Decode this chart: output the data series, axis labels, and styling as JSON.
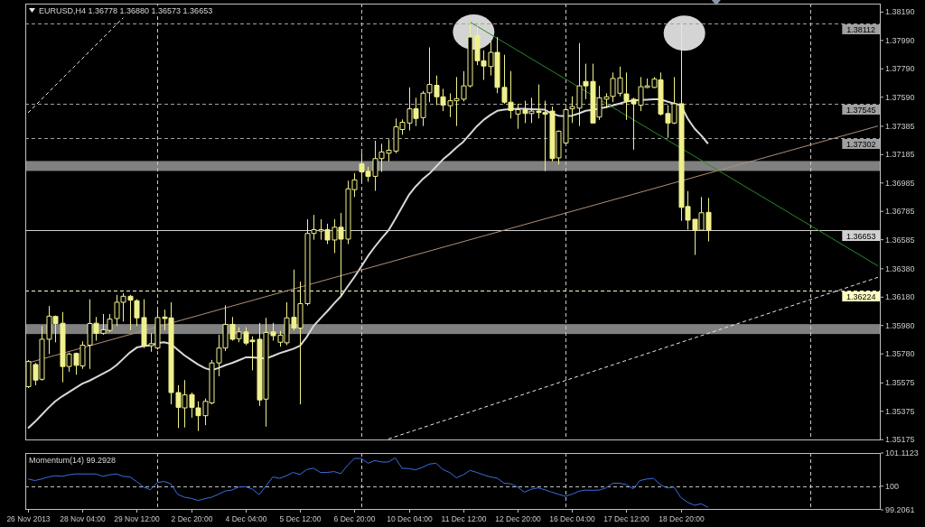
{
  "chart_data": [
    {
      "type": "candlestick",
      "title": "EURUSD,H4 1.36778 1.36880 1.36573 1.36653",
      "color": "#f0f08c",
      "categories": [
        "26 Nov 2013",
        null,
        null,
        null,
        null,
        null,
        null,
        null,
        "28 Nov 04:00",
        null,
        null,
        null,
        null,
        null,
        null,
        null,
        "29 Nov 12:00",
        null,
        null,
        null,
        null,
        null,
        null,
        null,
        "2 Dec 20:00",
        null,
        null,
        null,
        null,
        null,
        null,
        null,
        "4 Dec 04:00",
        null,
        null,
        null,
        null,
        null,
        null,
        null,
        "5 Dec 12:00",
        null,
        null,
        null,
        null,
        null,
        null,
        null,
        "6 Dec 20:00",
        null,
        null,
        null,
        null,
        null,
        null,
        null,
        "10 Dec 04:00",
        null,
        null,
        null,
        null,
        null,
        null,
        null,
        "11 Dec 12:00",
        null,
        null,
        null,
        null,
        null,
        null,
        null,
        "12 Dec 20:00",
        null,
        null,
        null,
        null,
        null,
        null,
        null,
        "16 Dec 04:00",
        null,
        null,
        null,
        null,
        null,
        null,
        null,
        "17 Dec 12:00",
        null,
        null,
        null,
        null,
        null,
        null,
        null,
        "18 Dec 20:00",
        null,
        null,
        null,
        null,
        null,
        null,
        null,
        null,
        null,
        null,
        null,
        null,
        null,
        null,
        null,
        null,
        null,
        null,
        null,
        null,
        null,
        null,
        null,
        null,
        null,
        null,
        null,
        null,
        null
      ],
      "ohlc": [
        [
          1.35549,
          1.35737,
          1.35539,
          1.35726
        ],
        [
          1.35705,
          1.35716,
          1.35559,
          1.35595
        ],
        [
          1.35601,
          1.35977,
          1.35591,
          1.35883
        ],
        [
          1.35883,
          1.36117,
          1.35779,
          1.36046
        ],
        [
          1.36044,
          1.3605,
          1.35862,
          1.35994
        ],
        [
          1.35996,
          1.36075,
          1.3558,
          1.35691
        ],
        [
          1.35691,
          1.35789,
          1.35654,
          1.35779
        ],
        [
          1.35783,
          1.35789,
          1.35633,
          1.35699
        ],
        [
          1.35695,
          1.35868,
          1.35674,
          1.35841
        ],
        [
          1.35841,
          1.36165,
          1.35674,
          1.35994
        ],
        [
          1.35996,
          1.3604,
          1.35873,
          1.35925
        ],
        [
          1.35925,
          1.36061,
          1.35915,
          1.3595
        ],
        [
          1.35946,
          1.36061,
          1.35935,
          1.36025
        ],
        [
          1.36029,
          1.36196,
          1.35977,
          1.36144
        ],
        [
          1.36144,
          1.36207,
          1.36008,
          1.36186
        ],
        [
          1.36186,
          1.36196,
          1.35946,
          1.36159
        ],
        [
          1.36155,
          1.36165,
          1.35977,
          1.36034
        ],
        [
          1.36036,
          1.36165,
          1.35821,
          1.35837
        ],
        [
          1.35837,
          1.35925,
          1.35795,
          1.35852
        ],
        [
          1.35821,
          1.36092,
          1.3581,
          1.36036
        ],
        [
          1.3604,
          1.36092,
          1.35946,
          1.36029
        ],
        [
          1.36034,
          1.36144,
          1.35424,
          1.35507
        ],
        [
          1.35507,
          1.35559,
          1.35257,
          1.35403
        ],
        [
          1.35399,
          1.35595,
          1.35261,
          1.35491
        ],
        [
          1.35493,
          1.35507,
          1.3533,
          1.35403
        ],
        [
          1.35399,
          1.35445,
          1.35236,
          1.35344
        ],
        [
          1.35344,
          1.35465,
          1.35277,
          1.35445
        ],
        [
          1.35434,
          1.35737,
          1.35424,
          1.35716
        ],
        [
          1.35716,
          1.35915,
          1.35622,
          1.35821
        ],
        [
          1.35821,
          1.36123,
          1.358,
          1.35988
        ],
        [
          1.35988,
          1.3604,
          1.35873,
          1.35883
        ],
        [
          1.35887,
          1.35967,
          1.35862,
          1.35935
        ],
        [
          1.35935,
          1.35967,
          1.35841,
          1.35856
        ],
        [
          1.35877,
          1.35904,
          1.35664,
          1.35866
        ],
        [
          1.35883,
          1.35998,
          1.35413,
          1.35455
        ],
        [
          1.35461,
          1.36034,
          1.35267,
          1.35931
        ],
        [
          1.35935,
          1.35998,
          1.35873,
          1.35908
        ],
        [
          1.35862,
          1.35942,
          1.35831,
          1.35912
        ],
        [
          1.35858,
          1.36144,
          1.35841,
          1.36034
        ],
        [
          1.36038,
          1.36374,
          1.35945,
          1.35962
        ],
        [
          1.35962,
          1.3629,
          1.35424,
          1.36134
        ],
        [
          1.36134,
          1.36729,
          1.36121,
          1.36629
        ],
        [
          1.36629,
          1.3676,
          1.36585,
          1.36656
        ],
        [
          1.36646,
          1.36729,
          1.36585,
          1.36656
        ],
        [
          1.36656,
          1.36698,
          1.36554,
          1.36583
        ],
        [
          1.36583,
          1.36729,
          1.36491,
          1.36673
        ],
        [
          1.36673,
          1.36773,
          1.36184,
          1.36589
        ],
        [
          1.36589,
          1.37001,
          1.36554,
          1.36944
        ],
        [
          1.36938,
          1.37055,
          1.36886,
          1.37007
        ],
        [
          1.3712,
          1.37199,
          1.36992,
          1.37063
        ],
        [
          1.37068,
          1.37099,
          1.36994,
          1.37032
        ],
        [
          1.37032,
          1.37283,
          1.3693,
          1.37157
        ],
        [
          1.37157,
          1.37262,
          1.37063,
          1.37204
        ],
        [
          1.37195,
          1.37293,
          1.37137,
          1.37216
        ],
        [
          1.3721,
          1.3744,
          1.37195,
          1.37381
        ],
        [
          1.37362,
          1.37433,
          1.37325,
          1.37413
        ],
        [
          1.37408,
          1.37659,
          1.37356,
          1.37508
        ],
        [
          1.37508,
          1.37586,
          1.37387,
          1.3744
        ],
        [
          1.37446,
          1.37634,
          1.37387,
          1.37618
        ],
        [
          1.37621,
          1.37941,
          1.37555,
          1.3768
        ],
        [
          1.37674,
          1.37743,
          1.37534,
          1.37593
        ],
        [
          1.37593,
          1.37649,
          1.37492,
          1.37534
        ],
        [
          1.3753,
          1.37617,
          1.3745,
          1.37565
        ],
        [
          1.37565,
          1.37732,
          1.37387,
          1.3758
        ],
        [
          1.37576,
          1.37774,
          1.3756,
          1.3767
        ],
        [
          1.3767,
          1.3812,
          1.37659,
          1.38014
        ],
        [
          1.38025,
          1.38088,
          1.37816,
          1.37847
        ],
        [
          1.37847,
          1.3792,
          1.37712,
          1.3781
        ],
        [
          1.37806,
          1.37983,
          1.37743,
          1.37906
        ],
        [
          1.37906,
          1.38014,
          1.37618,
          1.37659
        ],
        [
          1.37659,
          1.37889,
          1.37544,
          1.37555
        ],
        [
          1.37555,
          1.37774,
          1.3744,
          1.37496
        ],
        [
          1.37471,
          1.37544,
          1.37367,
          1.37502
        ],
        [
          1.37502,
          1.37565,
          1.37408,
          1.37475
        ],
        [
          1.37475,
          1.37586,
          1.37408,
          1.37492
        ],
        [
          1.37492,
          1.3768,
          1.3744,
          1.37482
        ],
        [
          1.37482,
          1.37565,
          1.37069,
          1.3747
        ],
        [
          1.37492,
          1.37524,
          1.37137,
          1.37157
        ],
        [
          1.37162,
          1.37356,
          1.37116,
          1.3735
        ],
        [
          1.37267,
          1.37513,
          1.37262,
          1.37502
        ],
        [
          1.37508,
          1.37596,
          1.37408,
          1.37524
        ],
        [
          1.37513,
          1.37972,
          1.37387,
          1.3767
        ],
        [
          1.37701,
          1.37826,
          1.37576,
          1.3767
        ],
        [
          1.37701,
          1.37826,
          1.37408,
          1.37408
        ],
        [
          1.3745,
          1.3767,
          1.3743,
          1.37586
        ],
        [
          1.37576,
          1.37618,
          1.37513,
          1.37593
        ],
        [
          1.37596,
          1.37764,
          1.37555,
          1.37722
        ],
        [
          1.37618,
          1.37806,
          1.37596,
          1.37726
        ],
        [
          1.37613,
          1.37764,
          1.3743,
          1.37565
        ],
        [
          1.37576,
          1.37586,
          1.3722,
          1.37544
        ],
        [
          1.37534,
          1.37732,
          1.37492,
          1.37664
        ],
        [
          1.37659,
          1.37722,
          1.37655,
          1.3767
        ],
        [
          1.37659,
          1.37732,
          1.37655,
          1.37718
        ],
        [
          1.37712,
          1.37764,
          1.37461,
          1.37471
        ],
        [
          1.37475,
          1.37534,
          1.37304,
          1.37408
        ],
        [
          1.37408,
          1.37732,
          1.374,
          1.37544
        ],
        [
          1.37544,
          1.38112,
          1.36718,
          1.36813
        ],
        [
          1.36819,
          1.36928,
          1.36656,
          1.36723
        ],
        [
          1.36729,
          1.36729,
          1.36478,
          1.36652
        ],
        [
          1.36652,
          1.36886,
          1.36646,
          1.36775
        ],
        [
          1.36778,
          1.3688,
          1.36573,
          1.36653
        ],
        null,
        null,
        null,
        null,
        null,
        null,
        null,
        null,
        null,
        null,
        null,
        null,
        null,
        null,
        null,
        null,
        null,
        null,
        null,
        null,
        null,
        null,
        null,
        null,
        null
      ],
      "series": [
        {
          "type": "line",
          "color": "#d8d8d8",
          "values": [
            1.35256,
            1.353,
            1.3535,
            1.354,
            1.35445,
            1.3548,
            1.3551,
            1.3554,
            1.3557,
            1.3559,
            1.35615,
            1.3564,
            1.35665,
            1.357,
            1.35745,
            1.3579,
            1.35825,
            1.35835,
            1.3584,
            1.35855,
            1.35862,
            1.3585,
            1.3581,
            1.3577,
            1.35737,
            1.35705,
            1.3568,
            1.35664,
            1.3568,
            1.357,
            1.35716,
            1.35735,
            1.35755,
            1.35755,
            1.3575,
            1.35747,
            1.35765,
            1.35785,
            1.358,
            1.35815,
            1.35837,
            1.359,
            1.35977,
            1.3603,
            1.3608,
            1.36135,
            1.36186,
            1.36255,
            1.36322,
            1.36395,
            1.3647,
            1.36535,
            1.36595,
            1.3665,
            1.3673,
            1.36815,
            1.369,
            1.3696,
            1.3701,
            1.3705,
            1.371,
            1.3715,
            1.3719,
            1.37235,
            1.37275,
            1.3733,
            1.37385,
            1.3743,
            1.37465,
            1.37494,
            1.37502,
            1.37506,
            1.37508,
            1.37508,
            1.37506,
            1.37504,
            1.37502,
            1.37475,
            1.3746,
            1.37456,
            1.3746,
            1.37475,
            1.37494,
            1.375,
            1.3751,
            1.3752,
            1.37532,
            1.37545,
            1.3756,
            1.37566,
            1.3757,
            1.37573,
            1.37576,
            1.37575,
            1.3756,
            1.37545,
            1.37534,
            1.3744,
            1.3737,
            1.3732,
            1.37262,
            null,
            null,
            null,
            null,
            null,
            null,
            null,
            null,
            null,
            null,
            null,
            null,
            null,
            null,
            null,
            null,
            null,
            null,
            null,
            null,
            null,
            null,
            null,
            null,
            null
          ]
        },
        {
          "type": "line",
          "color": "#b09078",
          "values": [
            1.35716,
            null,
            null,
            null,
            null,
            null,
            null,
            null,
            null,
            null,
            null,
            null,
            null,
            null,
            null,
            null,
            null,
            null,
            null,
            null,
            null,
            null,
            null,
            null,
            null,
            null,
            null,
            null,
            null,
            null,
            null,
            null,
            null,
            null,
            null,
            null,
            null,
            null,
            null,
            null,
            null,
            null,
            null,
            null,
            null,
            null,
            null,
            null,
            null,
            null,
            null,
            null,
            null,
            null,
            null,
            null,
            null,
            null,
            null,
            null,
            null,
            null,
            null,
            null,
            null,
            null,
            null,
            null,
            null,
            null,
            null,
            null,
            null,
            null,
            null,
            null,
            null,
            null,
            null,
            null,
            null,
            null,
            null,
            null,
            null,
            null,
            null,
            null,
            null,
            null,
            null,
            null,
            null,
            null,
            null,
            null,
            null,
            null,
            null,
            null,
            null,
            null,
            null,
            null,
            null,
            null,
            null,
            null,
            null,
            null,
            null,
            null,
            null,
            null,
            null,
            null,
            null,
            null,
            null,
            null,
            null,
            null,
            null,
            null,
            null,
            1.37387
          ]
        },
        {
          "type": "line",
          "color": "#e8e8e8",
          "line_style": "dashed",
          "values": [
            1.3748,
            null,
            null,
            null,
            null,
            null,
            null,
            null,
            null,
            null,
            null,
            null,
            null,
            null,
            1.3815,
            null,
            null,
            null,
            null,
            null,
            null,
            null,
            null,
            null,
            null,
            null,
            null,
            null,
            null,
            null,
            null,
            null,
            null,
            null,
            null,
            null,
            null,
            null,
            null,
            null,
            null,
            null,
            null,
            null,
            null,
            null,
            null,
            null,
            null,
            null,
            null,
            null,
            null,
            null,
            null,
            null,
            null,
            null,
            null,
            null,
            null,
            null,
            null,
            null,
            null,
            null,
            null,
            null,
            null,
            null,
            null,
            null,
            null,
            null,
            null,
            null,
            null,
            null,
            null,
            null,
            null,
            null,
            null,
            null,
            null,
            null,
            null,
            null,
            null,
            null,
            null,
            null,
            null,
            null,
            null,
            null,
            null,
            null,
            null,
            null,
            null,
            null,
            null,
            null,
            null,
            null,
            null,
            null,
            null,
            null,
            null,
            null,
            null,
            null,
            null,
            null,
            null,
            null,
            null,
            null,
            null,
            null,
            null,
            null,
            null,
            null
          ]
        },
        {
          "type": "line",
          "color": "#e8e8e8",
          "line_style": "dashed",
          "values": [
            null,
            null,
            null,
            null,
            null,
            null,
            null,
            null,
            null,
            null,
            null,
            null,
            null,
            null,
            null,
            null,
            null,
            null,
            null,
            null,
            null,
            null,
            null,
            null,
            null,
            null,
            null,
            null,
            null,
            null,
            null,
            null,
            null,
            null,
            null,
            null,
            null,
            null,
            null,
            null,
            null,
            null,
            null,
            null,
            null,
            null,
            null,
            null,
            null,
            null,
            null,
            null,
            null,
            1.3518,
            null,
            null,
            null,
            null,
            null,
            null,
            null,
            null,
            null,
            null,
            null,
            null,
            null,
            null,
            null,
            null,
            null,
            null,
            null,
            null,
            null,
            null,
            null,
            null,
            null,
            null,
            null,
            null,
            null,
            null,
            null,
            null,
            null,
            null,
            null,
            null,
            null,
            null,
            null,
            null,
            null,
            null,
            null,
            null,
            null,
            null,
            null,
            null,
            null,
            null,
            null,
            null,
            null,
            null,
            null,
            null,
            null,
            null,
            null,
            null,
            null,
            null,
            null,
            null,
            null,
            null,
            null,
            null,
            null,
            null,
            null,
            1.3632
          ]
        },
        {
          "type": "line",
          "color": "#2a8a2a",
          "values": [
            null,
            null,
            null,
            null,
            null,
            null,
            null,
            null,
            null,
            null,
            null,
            null,
            null,
            null,
            null,
            null,
            null,
            null,
            null,
            null,
            null,
            null,
            null,
            null,
            null,
            null,
            null,
            null,
            null,
            null,
            null,
            null,
            null,
            null,
            null,
            null,
            null,
            null,
            null,
            null,
            null,
            null,
            null,
            null,
            null,
            null,
            null,
            null,
            null,
            null,
            null,
            null,
            null,
            null,
            null,
            null,
            null,
            null,
            null,
            null,
            null,
            null,
            null,
            null,
            null,
            1.3812,
            null,
            null,
            null,
            null,
            null,
            null,
            null,
            null,
            null,
            null,
            null,
            null,
            null,
            null,
            null,
            null,
            null,
            null,
            null,
            null,
            null,
            null,
            null,
            null,
            null,
            null,
            null,
            null,
            null,
            null,
            null,
            null,
            null,
            null,
            null,
            null,
            null,
            null,
            null,
            null,
            null,
            null,
            null,
            null,
            null,
            null,
            null,
            null,
            null,
            null,
            null,
            null,
            null,
            null,
            null,
            null,
            null,
            null,
            null,
            1.364
          ]
        }
      ],
      "ylim": [
        1.3517,
        1.3825
      ],
      "yticks": [
        {
          "value": 1.3819,
          "label": "1.38190"
        },
        {
          "value": 1.3799,
          "label": "1.37990"
        },
        {
          "value": 1.3779,
          "label": "1.37790"
        },
        {
          "value": 1.3759,
          "label": "1.37590"
        },
        1.37385,
        1.37185,
        1.36985,
        1.36785,
        1.36585,
        {
          "value": 1.3638,
          "label": "1.36380"
        },
        {
          "value": 1.3618,
          "label": "1.36180"
        },
        {
          "value": 1.3598,
          "label": "1.35980"
        },
        {
          "value": 1.3578,
          "label": "1.35780"
        },
        1.35575,
        1.35375,
        1.35175
      ],
      "bands": [
        {
          "axis": "y",
          "from": 1.3707,
          "to": 1.3714,
          "color": "#808080"
        },
        {
          "axis": "y",
          "from": 1.3592,
          "to": 1.3599,
          "color": "#808080"
        }
      ],
      "ref_lines": [
        {
          "axis": "y",
          "value": 1.38112,
          "label": "1.38112",
          "color": "#a0a0a0",
          "line_style": "dashed"
        },
        {
          "axis": "y",
          "value": 1.37545,
          "label": "1.37545",
          "color": "#a0a0a0",
          "line_style": "dashed"
        },
        {
          "axis": "y",
          "value": 1.37302,
          "label": "1.37302",
          "color": "#a0a0a0",
          "line_style": "dashed"
        },
        {
          "axis": "y",
          "value": 1.36653,
          "label": "1.36653",
          "color": "#d0d0d0",
          "line_style": "solid"
        },
        {
          "axis": "y",
          "value": 1.36224,
          "label": "1.36224",
          "color": "#ffffc0",
          "line_style": "dashed"
        }
      ]
    },
    {
      "type": "line",
      "title": "Momentum(14) 99.2928",
      "categories": [
        null,
        null,
        null,
        null,
        null,
        null,
        null,
        null,
        null,
        null,
        null,
        null,
        null,
        null,
        null,
        null,
        null,
        null,
        null,
        null,
        null,
        null,
        null,
        null,
        null,
        null,
        null,
        null,
        null,
        null,
        null,
        null,
        null,
        null,
        null,
        null,
        null,
        null,
        null,
        null,
        null,
        null,
        null,
        null,
        null,
        null,
        null,
        null,
        null,
        null,
        null,
        null,
        null,
        null,
        null,
        null,
        null,
        null,
        null,
        null,
        null,
        null,
        null,
        null,
        null,
        null,
        null,
        null,
        null,
        null,
        null,
        null,
        null,
        null,
        null,
        null,
        null,
        null,
        null,
        null,
        null,
        null,
        null,
        null,
        null,
        null,
        null,
        null,
        null,
        null,
        null,
        null,
        null,
        null,
        null,
        null,
        null,
        null,
        null,
        null,
        null
      ],
      "series": [
        {
          "color": "#3a6fe0",
          "values": [
            100.24,
            100.19,
            100.24,
            100.31,
            100.35,
            100.33,
            100.38,
            100.41,
            100.41,
            100.41,
            100.41,
            100.33,
            100.38,
            100.41,
            100.33,
            100.31,
            100.15,
            99.97,
            99.88,
            100.12,
            100.16,
            100.08,
            99.73,
            99.63,
            99.59,
            99.52,
            99.58,
            99.63,
            99.73,
            99.84,
            99.87,
            99.97,
            99.98,
            99.9,
            99.72,
            100.01,
            100.31,
            100.26,
            100.35,
            100.46,
            100.39,
            100.56,
            100.6,
            100.46,
            100.46,
            100.49,
            100.42,
            100.7,
            100.93,
            100.93,
            100.77,
            100.86,
            100.81,
            100.81,
            100.95,
            100.6,
            100.59,
            100.55,
            100.63,
            100.74,
            100.77,
            100.56,
            100.46,
            100.28,
            100.38,
            100.53,
            100.46,
            100.38,
            100.31,
            100.27,
            100.1,
            100.08,
            99.97,
            99.8,
            99.9,
            99.94,
            99.88,
            99.8,
            99.73,
            99.66,
            99.73,
            99.83,
            99.87,
            99.86,
            99.87,
            99.94,
            100.1,
            100.1,
            100.05,
            99.91,
            100.19,
            100.24,
            100.26,
            100.05,
            99.94,
            99.97,
            99.62,
            99.46,
            99.36,
            99.41,
            99.29
          ]
        }
      ],
      "ylim": [
        99.2061,
        101.1123
      ],
      "yticks": [
        99.2061,
        100,
        101.1123
      ],
      "ref_lines": [
        {
          "axis": "y",
          "value": 100,
          "color": "#c0c0c0",
          "line_style": "dashed"
        }
      ]
    }
  ]
}
